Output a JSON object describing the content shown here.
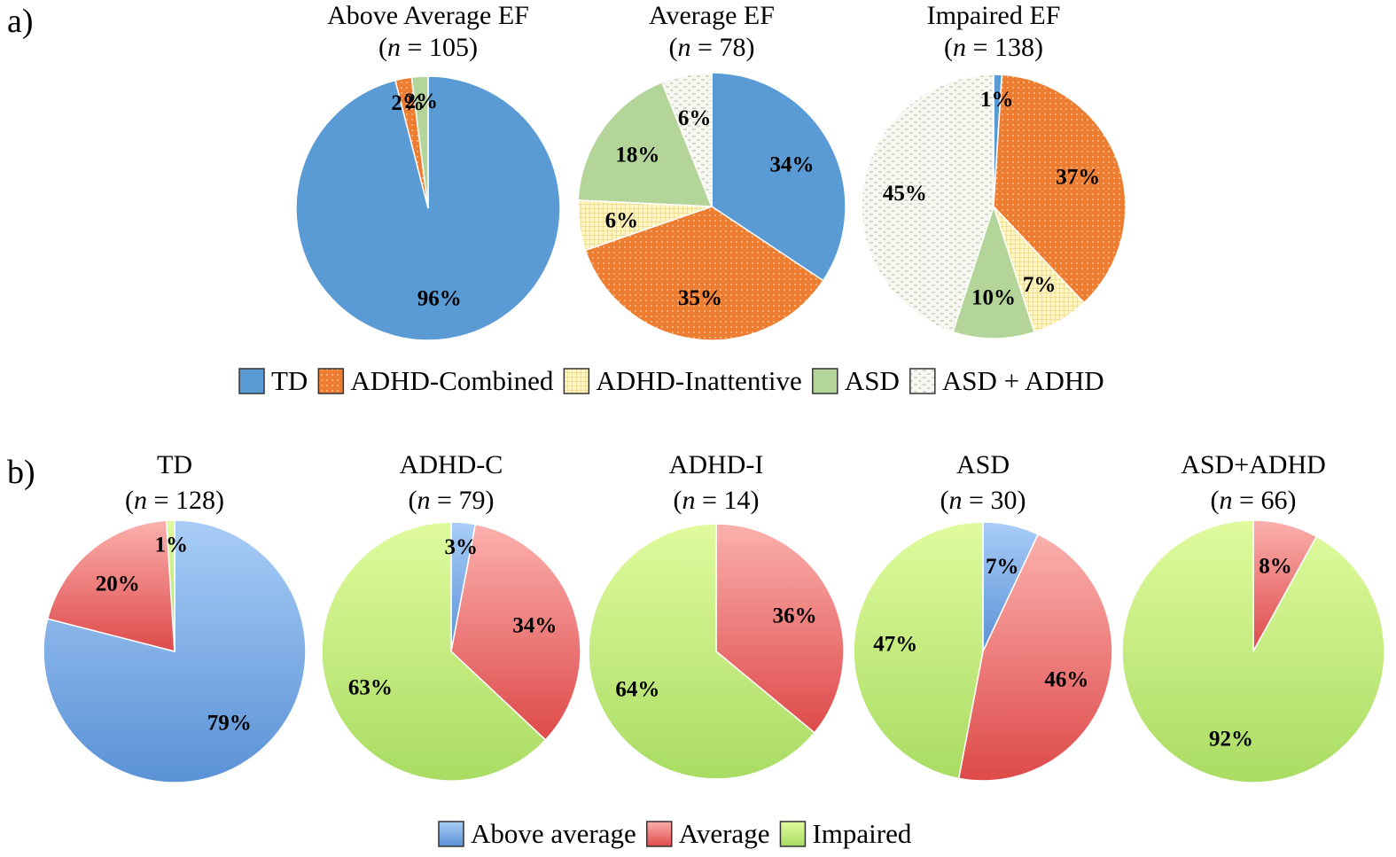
{
  "panels": [
    {
      "id": "a",
      "label": "a)",
      "legend": [
        {
          "name": "TD",
          "color": "#5b9bd5",
          "pattern": "solid"
        },
        {
          "name": "ADHD-Combined",
          "color": "#ed7d31",
          "pattern": "dots"
        },
        {
          "name": "ADHD-Inattentive",
          "color": "#fff2b0",
          "pattern": "grid"
        },
        {
          "name": "ASD",
          "color": "#b3d59a",
          "pattern": "solid"
        },
        {
          "name": "ASD + ADHD",
          "color": "#f4f6ee",
          "pattern": "dash"
        }
      ]
    },
    {
      "id": "b",
      "label": "b)",
      "legend": [
        {
          "name": "Above average",
          "color": "#7eb0ea",
          "pattern": "gradient"
        },
        {
          "name": "Average",
          "color": "#f08a8a",
          "pattern": "gradient"
        },
        {
          "name": "Impaired",
          "color": "#c9ef87",
          "pattern": "gradient"
        }
      ]
    }
  ],
  "chart_data": [
    {
      "type": "pie",
      "panel": "a",
      "title": "Above Average EF",
      "n": "105",
      "slices": [
        {
          "category": "TD",
          "value": 96,
          "label": "96%"
        },
        {
          "category": "ADHD-Combined",
          "value": 2,
          "label": "2%"
        },
        {
          "category": "ASD",
          "value": 2,
          "label": "2%"
        }
      ]
    },
    {
      "type": "pie",
      "panel": "a",
      "title": "Average EF",
      "n": "78",
      "slices": [
        {
          "category": "TD",
          "value": 34,
          "label": "34%"
        },
        {
          "category": "ADHD-Combined",
          "value": 35,
          "label": "35%"
        },
        {
          "category": "ADHD-Inattentive",
          "value": 6,
          "label": "6%"
        },
        {
          "category": "ASD",
          "value": 18,
          "label": "18%"
        },
        {
          "category": "ASD + ADHD",
          "value": 6,
          "label": "6%"
        }
      ]
    },
    {
      "type": "pie",
      "panel": "a",
      "title": "Impaired EF",
      "n": "138",
      "slices": [
        {
          "category": "TD",
          "value": 1,
          "label": "1%"
        },
        {
          "category": "ADHD-Combined",
          "value": 37,
          "label": "37%"
        },
        {
          "category": "ADHD-Inattentive",
          "value": 7,
          "label": "7%"
        },
        {
          "category": "ASD",
          "value": 10,
          "label": "10%"
        },
        {
          "category": "ASD + ADHD",
          "value": 45,
          "label": "45%"
        }
      ]
    },
    {
      "type": "pie",
      "panel": "b",
      "title": "TD",
      "n": "128",
      "slices": [
        {
          "category": "Above average",
          "value": 79,
          "label": "79%"
        },
        {
          "category": "Average",
          "value": 20,
          "label": "20%"
        },
        {
          "category": "Impaired",
          "value": 1,
          "label": "1%"
        }
      ]
    },
    {
      "type": "pie",
      "panel": "b",
      "title": "ADHD-C",
      "n": "79",
      "slices": [
        {
          "category": "Above average",
          "value": 3,
          "label": "3%"
        },
        {
          "category": "Average",
          "value": 34,
          "label": "34%"
        },
        {
          "category": "Impaired",
          "value": 63,
          "label": "63%"
        }
      ]
    },
    {
      "type": "pie",
      "panel": "b",
      "title": "ADHD-I",
      "n": "14",
      "slices": [
        {
          "category": "Average",
          "value": 36,
          "label": "36%"
        },
        {
          "category": "Impaired",
          "value": 64,
          "label": "64%"
        }
      ]
    },
    {
      "type": "pie",
      "panel": "b",
      "title": "ASD",
      "n": "30",
      "slices": [
        {
          "category": "Above average",
          "value": 7,
          "label": "7%"
        },
        {
          "category": "Average",
          "value": 46,
          "label": "46%"
        },
        {
          "category": "Impaired",
          "value": 47,
          "label": "47%"
        }
      ]
    },
    {
      "type": "pie",
      "panel": "b",
      "title": "ASD+ADHD",
      "n": "66",
      "slices": [
        {
          "category": "Average",
          "value": 8,
          "label": "8%"
        },
        {
          "category": "Impaired",
          "value": 92,
          "label": "92%"
        }
      ]
    }
  ]
}
